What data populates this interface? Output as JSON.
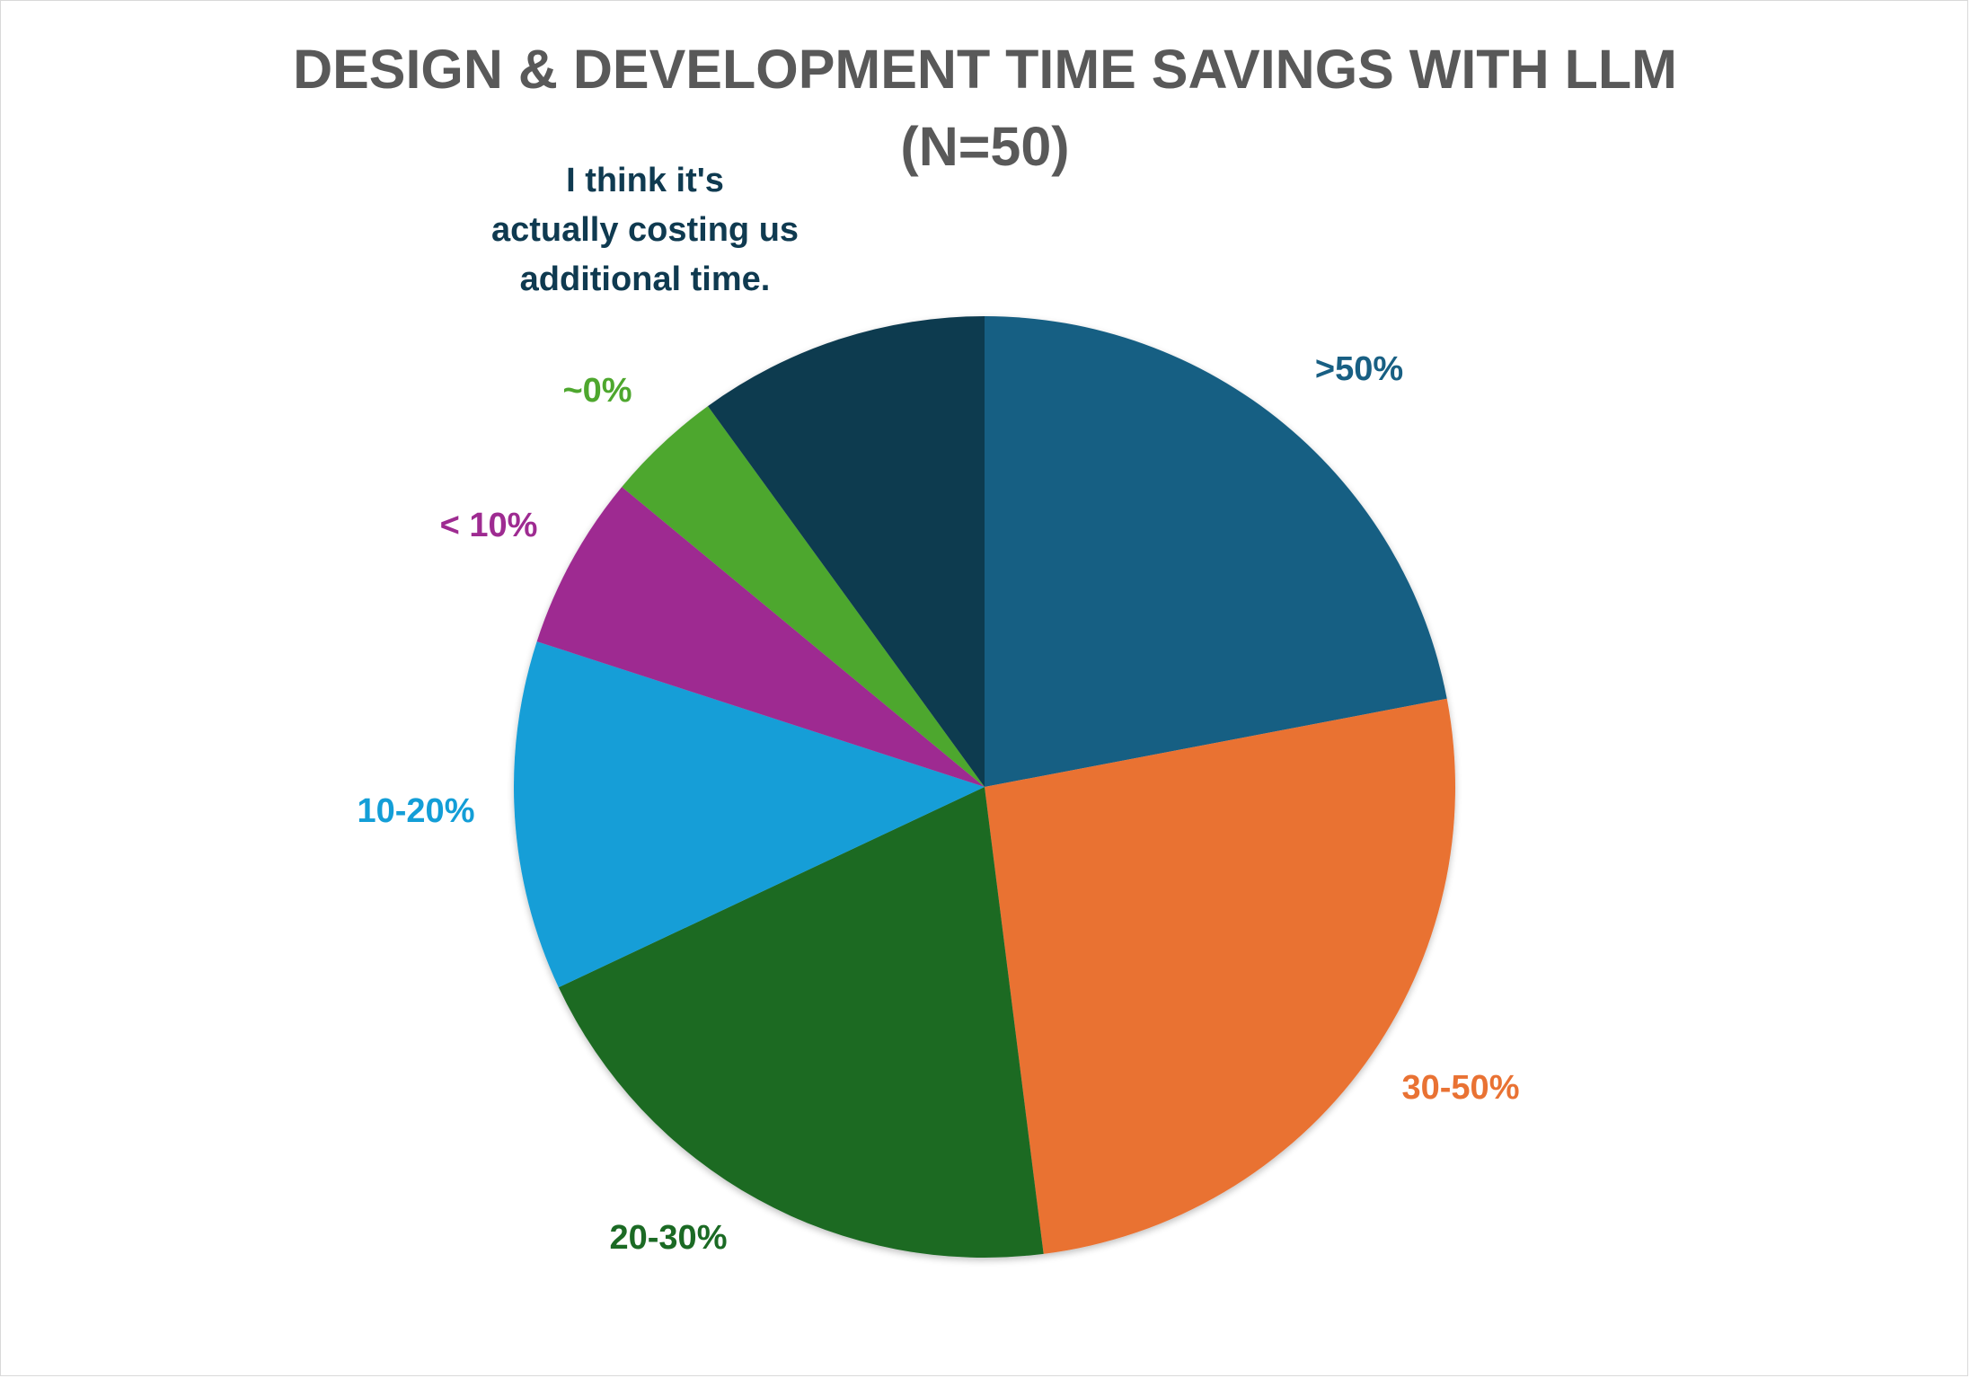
{
  "chart_data": {
    "type": "pie",
    "title": "DESIGN & DEVELOPMENT TIME SAVINGS WITH LLM",
    "subtitle": "(N=50)",
    "slices": [
      {
        "label": ">50%",
        "value": 11,
        "color": "#185f83",
        "label_color": "#185f83"
      },
      {
        "label": "30-50%",
        "value": 13,
        "color": "#e97233",
        "label_color": "#e97233"
      },
      {
        "label": "20-30%",
        "value": 10,
        "color": "#1b6a24",
        "label_color": "#1b6a24"
      },
      {
        "label": "10-20%",
        "value": 6,
        "color": "#139ed7",
        "label_color": "#139ed7"
      },
      {
        "label": "< 10%",
        "value": 3,
        "color": "#9e2b91",
        "label_color": "#9e2b91"
      },
      {
        "label": "~0%",
        "value": 2,
        "color": "#4ea72e",
        "label_color": "#4ea72e"
      },
      {
        "label": "I think it's actually costing us additional time.",
        "value": 5,
        "color": "#0f3a50",
        "label_color": "#0f3a50"
      }
    ],
    "start_angle": "12 o'clock",
    "direction": "clockwise",
    "legend": "none"
  }
}
